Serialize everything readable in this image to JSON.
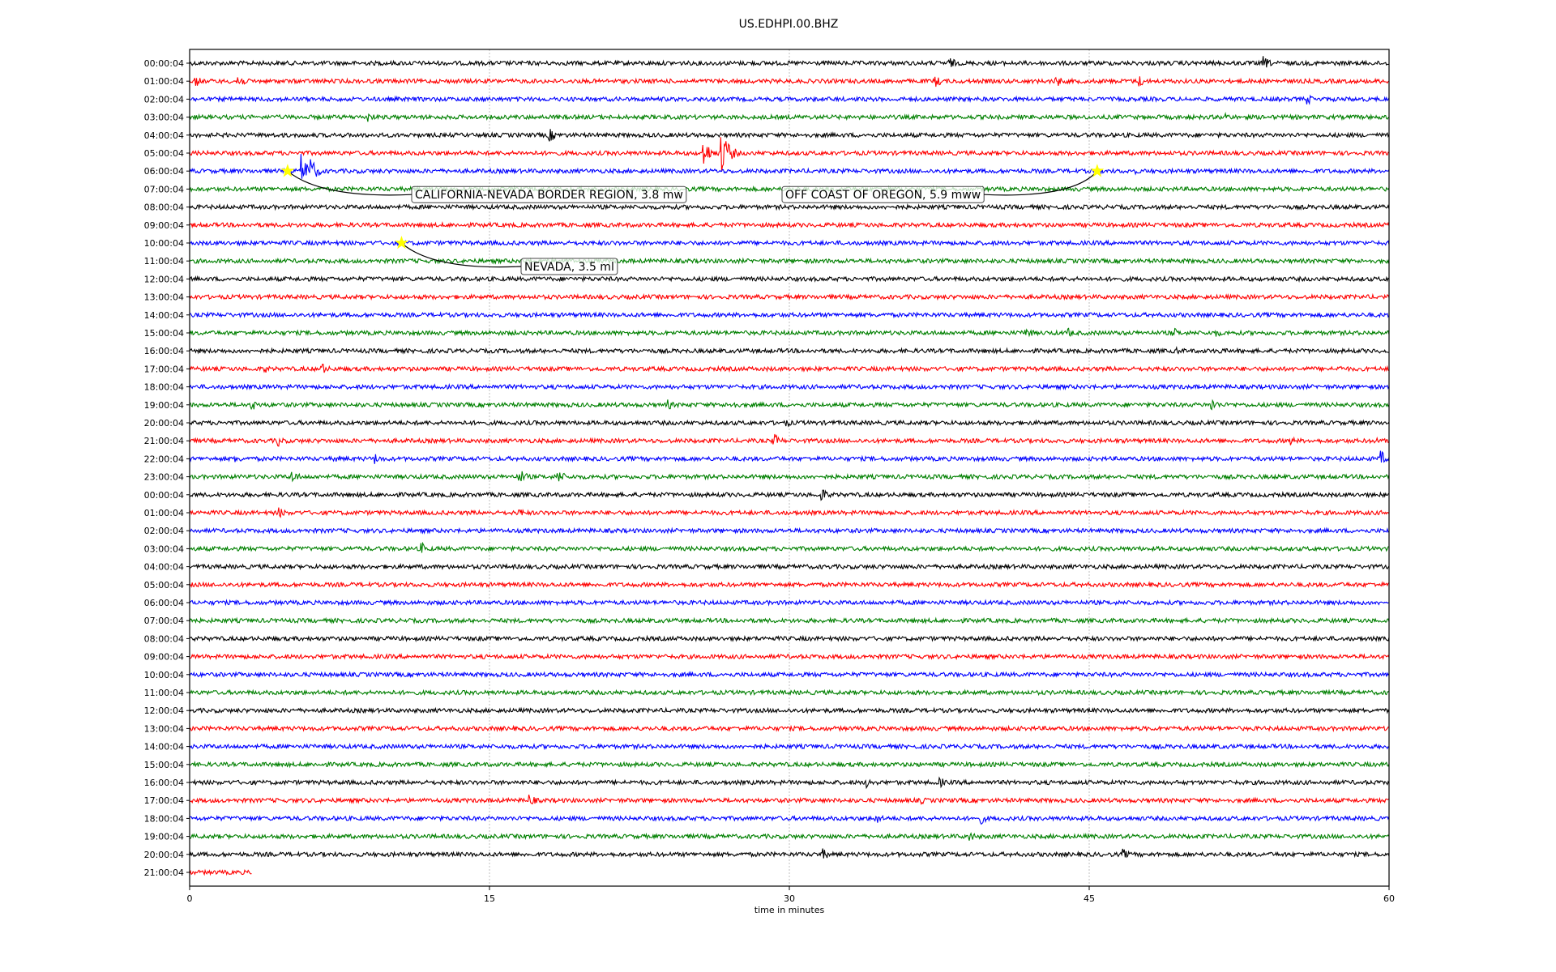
{
  "chart_data": {
    "type": "line",
    "title": "US.EDHPI.00.BHZ",
    "xlabel": "time in minutes",
    "ylabel": "",
    "xlim": [
      0,
      60
    ],
    "xticks": [
      "0",
      "15",
      "30",
      "45",
      "60"
    ],
    "grid": "vertical dotted at x ticks",
    "row_colors": [
      "#000000",
      "#ff0000",
      "#0000ff",
      "#008000"
    ],
    "row_labels": [
      "00:00:04",
      "01:00:04",
      "02:00:04",
      "03:00:04",
      "04:00:04",
      "05:00:04",
      "06:00:04",
      "07:00:04",
      "08:00:04",
      "09:00:04",
      "10:00:04",
      "11:00:04",
      "12:00:04",
      "13:00:04",
      "14:00:04",
      "15:00:04",
      "16:00:04",
      "17:00:04",
      "18:00:04",
      "19:00:04",
      "20:00:04",
      "21:00:04",
      "22:00:04",
      "23:00:04",
      "00:00:04",
      "01:00:04",
      "02:00:04",
      "03:00:04",
      "04:00:04",
      "05:00:04",
      "06:00:04",
      "07:00:04",
      "08:00:04",
      "09:00:04",
      "10:00:04",
      "11:00:04",
      "12:00:04",
      "13:00:04",
      "14:00:04",
      "15:00:04",
      "16:00:04",
      "17:00:04",
      "18:00:04",
      "19:00:04",
      "20:00:04",
      "21:00:04"
    ],
    "last_row_end_minutes": 3.1,
    "events": [
      {
        "row": 0,
        "t": 38,
        "a": 8
      },
      {
        "row": 0,
        "t": 53.7,
        "a": 9
      },
      {
        "row": 1,
        "t": 0.3,
        "a": 7
      },
      {
        "row": 1,
        "t": 2.4,
        "a": 10
      },
      {
        "row": 1,
        "t": 37.3,
        "a": 8
      },
      {
        "row": 1,
        "t": 43.3,
        "a": 9
      },
      {
        "row": 1,
        "t": 47.5,
        "a": 8
      },
      {
        "row": 2,
        "t": 55.9,
        "a": 7
      },
      {
        "row": 3,
        "t": 8.9,
        "a": 7
      },
      {
        "row": 3,
        "t": 51.8,
        "a": 6
      },
      {
        "row": 4,
        "t": 18,
        "a": 9
      },
      {
        "row": 5,
        "t": 25.7,
        "a": 18
      },
      {
        "row": 5,
        "t": 26.6,
        "a": 30
      },
      {
        "row": 6,
        "t": 5.6,
        "a": 22
      },
      {
        "row": 6,
        "t": 6.0,
        "a": 18
      },
      {
        "row": 6,
        "t": 47.2,
        "a": 5
      },
      {
        "row": 15,
        "t": 41.8,
        "a": 8
      },
      {
        "row": 15,
        "t": 43.9,
        "a": 7
      },
      {
        "row": 15,
        "t": 49.2,
        "a": 7
      },
      {
        "row": 15,
        "t": 51.3,
        "a": 6
      },
      {
        "row": 16,
        "t": 49.4,
        "a": 5
      },
      {
        "row": 16,
        "t": 51.5,
        "a": 5
      },
      {
        "row": 17,
        "t": 6.6,
        "a": 8
      },
      {
        "row": 17,
        "t": 3.7,
        "a": 6
      },
      {
        "row": 17,
        "t": 57.5,
        "a": 5
      },
      {
        "row": 19,
        "t": 3.1,
        "a": 8
      },
      {
        "row": 19,
        "t": 23.9,
        "a": 7
      },
      {
        "row": 19,
        "t": 27.1,
        "a": 7
      },
      {
        "row": 19,
        "t": 51.1,
        "a": 9
      },
      {
        "row": 20,
        "t": 29.8,
        "a": 6
      },
      {
        "row": 21,
        "t": 4.4,
        "a": 8
      },
      {
        "row": 21,
        "t": 29.2,
        "a": 10
      },
      {
        "row": 21,
        "t": 55.0,
        "a": 7
      },
      {
        "row": 21,
        "t": 59.2,
        "a": 6
      },
      {
        "row": 22,
        "t": 2.3,
        "a": 6
      },
      {
        "row": 22,
        "t": 7.3,
        "a": 6
      },
      {
        "row": 22,
        "t": 9.3,
        "a": 7
      },
      {
        "row": 22,
        "t": 59.6,
        "a": 10
      },
      {
        "row": 23,
        "t": 5.1,
        "a": 9
      },
      {
        "row": 23,
        "t": 16.5,
        "a": 10
      },
      {
        "row": 23,
        "t": 18.4,
        "a": 10
      },
      {
        "row": 24,
        "t": 31.6,
        "a": 9
      },
      {
        "row": 25,
        "t": 4.5,
        "a": 7
      },
      {
        "row": 25,
        "t": 16.5,
        "a": 6
      },
      {
        "row": 25,
        "t": 34.2,
        "a": 5
      },
      {
        "row": 27,
        "t": 11.6,
        "a": 8
      },
      {
        "row": 40,
        "t": 33.9,
        "a": 7
      },
      {
        "row": 40,
        "t": 37.5,
        "a": 7
      },
      {
        "row": 41,
        "t": 17,
        "a": 8
      },
      {
        "row": 41,
        "t": 36.6,
        "a": 5
      },
      {
        "row": 42,
        "t": 34.3,
        "a": 8
      },
      {
        "row": 42,
        "t": 39.6,
        "a": 7
      },
      {
        "row": 43,
        "t": 39,
        "a": 7
      },
      {
        "row": 44,
        "t": 31.6,
        "a": 9
      },
      {
        "row": 44,
        "t": 46.7,
        "a": 7
      }
    ],
    "annotations": [
      {
        "label": "CALIFORNIA-NEVADA BORDER REGION, 3.8 mw",
        "row": 6,
        "t": 4.9
      },
      {
        "label": "OFF COAST OF OREGON, 5.9 mww",
        "row": 6,
        "t": 45.4
      },
      {
        "label": "NEVADA, 3.5 ml",
        "row": 10,
        "t": 10.6
      }
    ]
  }
}
